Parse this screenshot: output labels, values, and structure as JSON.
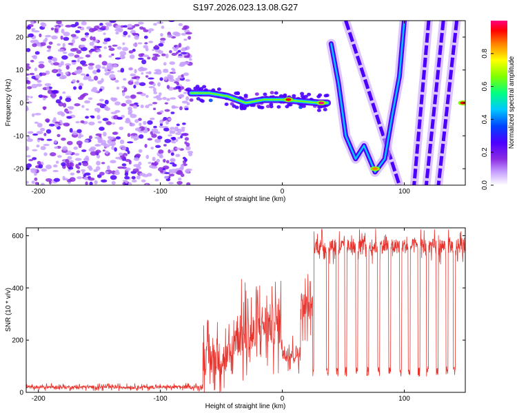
{
  "title": "S197.2026.023.13.08.G27",
  "colors": {
    "snr_line": "#e8322c",
    "colorbar": [
      "#ffffff",
      "#c7a0ff",
      "#8a2be2",
      "#4b00ff",
      "#0044ff",
      "#00c8ff",
      "#00ff80",
      "#80ff00",
      "#ffff00",
      "#ff8000",
      "#ff0000",
      "#ff0080"
    ]
  },
  "chart_data": [
    {
      "type": "heatmap",
      "title": "S197.2026.023.13.08.G27",
      "xlabel": "Height of straight line (km)",
      "ylabel": "Frequency (Hz)",
      "xlim": [
        -210,
        150
      ],
      "ylim": [
        -25,
        25
      ],
      "x_ticks": [
        -200,
        -100,
        0,
        100
      ],
      "x_tick_labels": [
        "-200",
        "-100",
        "0",
        "100"
      ],
      "y_ticks": [
        -20,
        -10,
        0,
        10,
        20
      ],
      "y_tick_labels": [
        "-20",
        "-10",
        "0",
        "10",
        "20"
      ],
      "colorbar": {
        "label": "Normalized spectral amplitude",
        "range": [
          0,
          1
        ],
        "ticks": [
          0.0,
          0.2,
          0.4,
          0.6,
          0.8
        ],
        "tick_labels": [
          "0.0",
          "0.2",
          "0.4",
          "0.6",
          "0.8"
        ]
      },
      "features": {
        "noise_region_x": [
          -210,
          -75
        ],
        "main_track": [
          {
            "x": -75,
            "y": 3
          },
          {
            "x": -60,
            "y": 3
          },
          {
            "x": -45,
            "y": 2
          },
          {
            "x": -30,
            "y": 0
          },
          {
            "x": -15,
            "y": 1
          },
          {
            "x": 0,
            "y": 1
          },
          {
            "x": 15,
            "y": 0.5
          },
          {
            "x": 30,
            "y": 0
          },
          {
            "x": 37,
            "y": 0
          }
        ],
        "bright_spots": [
          {
            "x": 5,
            "y": 1,
            "amplitude": 0.95
          },
          {
            "x": 32,
            "y": 0,
            "amplitude": 1.0
          },
          {
            "x": 148,
            "y": 0,
            "amplitude": 0.95
          },
          {
            "x": 76,
            "y": -20,
            "amplitude": 0.85
          }
        ],
        "parabolic_track": [
          {
            "x": 40,
            "y": 18
          },
          {
            "x": 46,
            "y": 6
          },
          {
            "x": 52,
            "y": -10
          },
          {
            "x": 60,
            "y": -17
          },
          {
            "x": 67,
            "y": -13
          },
          {
            "x": 76,
            "y": -21
          },
          {
            "x": 84,
            "y": -17
          },
          {
            "x": 90,
            "y": -4
          },
          {
            "x": 96,
            "y": 8
          },
          {
            "x": 100,
            "y": 25
          }
        ],
        "diagonal_bands": [
          {
            "x0": 52,
            "y0": 25,
            "x1": 96,
            "y1": -25
          },
          {
            "x0": 120,
            "y0": 25,
            "x1": 108,
            "y1": -25
          },
          {
            "x0": 132,
            "y0": 25,
            "x1": 118,
            "y1": -25
          },
          {
            "x0": 143,
            "y0": 25,
            "x1": 128,
            "y1": -25
          }
        ]
      }
    },
    {
      "type": "line",
      "xlabel": "Height of straight line (km)",
      "ylabel": "SNR (10 * v/v)",
      "xlim": [
        -210,
        150
      ],
      "ylim": [
        0,
        630
      ],
      "x_ticks": [
        -200,
        -100,
        0,
        100
      ],
      "x_tick_labels": [
        "-200",
        "-100",
        "0",
        "100"
      ],
      "y_ticks": [
        0,
        200,
        400,
        600
      ],
      "y_tick_labels": [
        "0",
        "200",
        "400",
        "600"
      ],
      "series": [
        {
          "name": "SNR",
          "color": "#e8322c",
          "segments": [
            {
              "x0": -210,
              "x1": -65,
              "mean": 20,
              "spread": 15
            },
            {
              "x0": -65,
              "x1": -40,
              "mean": 130,
              "spread": 160
            },
            {
              "x0": -40,
              "x1": -20,
              "mean": 220,
              "spread": 220
            },
            {
              "x0": -20,
              "x1": 0,
              "mean": 260,
              "spread": 200
            },
            {
              "x0": 0,
              "x1": 15,
              "mean": 150,
              "spread": 80
            },
            {
              "x0": 15,
              "x1": 25,
              "mean": 330,
              "spread": 140
            },
            {
              "x0": 25,
              "x1": 150,
              "mean": 560,
              "spread": 70
            }
          ],
          "dropouts_x": [
            25,
            37,
            45,
            52,
            61,
            70,
            79,
            88,
            97,
            104,
            112,
            119,
            127,
            135,
            141
          ],
          "dropout_value": 80
        }
      ]
    }
  ]
}
